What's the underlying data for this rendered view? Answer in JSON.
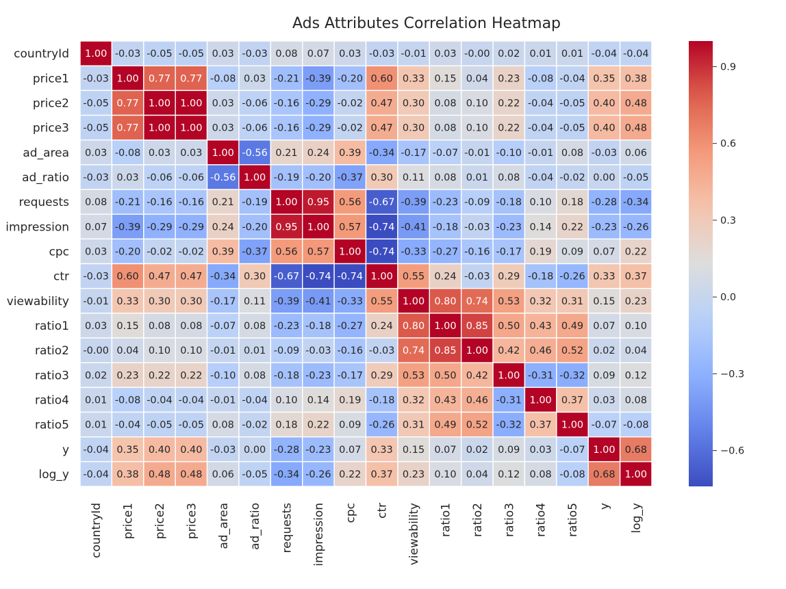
{
  "chart_data": {
    "type": "heatmap",
    "title": "Ads Attributes Correlation Heatmap",
    "labels": [
      "countryId",
      "price1",
      "price2",
      "price3",
      "ad_area",
      "ad_ratio",
      "requests",
      "impression",
      "cpc",
      "ctr",
      "viewability",
      "ratio1",
      "ratio2",
      "ratio3",
      "ratio4",
      "ratio5",
      "y",
      "log_y"
    ],
    "matrix": [
      [
        1.0,
        -0.03,
        -0.05,
        -0.05,
        0.03,
        -0.03,
        0.08,
        0.07,
        0.03,
        -0.03,
        -0.01,
        0.03,
        -0.0,
        0.02,
        0.01,
        0.01,
        -0.04,
        -0.04
      ],
      [
        -0.03,
        1.0,
        0.77,
        0.77,
        -0.08,
        0.03,
        -0.21,
        -0.39,
        -0.2,
        0.6,
        0.33,
        0.15,
        0.04,
        0.23,
        -0.08,
        -0.04,
        0.35,
        0.38
      ],
      [
        -0.05,
        0.77,
        1.0,
        1.0,
        0.03,
        -0.06,
        -0.16,
        -0.29,
        -0.02,
        0.47,
        0.3,
        0.08,
        0.1,
        0.22,
        -0.04,
        -0.05,
        0.4,
        0.48
      ],
      [
        -0.05,
        0.77,
        1.0,
        1.0,
        0.03,
        -0.06,
        -0.16,
        -0.29,
        -0.02,
        0.47,
        0.3,
        0.08,
        0.1,
        0.22,
        -0.04,
        -0.05,
        0.4,
        0.48
      ],
      [
        0.03,
        -0.08,
        0.03,
        0.03,
        1.0,
        -0.56,
        0.21,
        0.24,
        0.39,
        -0.34,
        -0.17,
        -0.07,
        -0.01,
        -0.1,
        -0.01,
        0.08,
        -0.03,
        0.06
      ],
      [
        -0.03,
        0.03,
        -0.06,
        -0.06,
        -0.56,
        1.0,
        -0.19,
        -0.2,
        -0.37,
        0.3,
        0.11,
        0.08,
        0.01,
        0.08,
        -0.04,
        -0.02,
        0.0,
        -0.05
      ],
      [
        0.08,
        -0.21,
        -0.16,
        -0.16,
        0.21,
        -0.19,
        1.0,
        0.95,
        0.56,
        -0.67,
        -0.39,
        -0.23,
        -0.09,
        -0.18,
        0.1,
        0.18,
        -0.28,
        -0.34
      ],
      [
        0.07,
        -0.39,
        -0.29,
        -0.29,
        0.24,
        -0.2,
        0.95,
        1.0,
        0.57,
        -0.74,
        -0.41,
        -0.18,
        -0.03,
        -0.23,
        0.14,
        0.22,
        -0.23,
        -0.26
      ],
      [
        0.03,
        -0.2,
        -0.02,
        -0.02,
        0.39,
        -0.37,
        0.56,
        0.57,
        1.0,
        -0.74,
        -0.33,
        -0.27,
        -0.16,
        -0.17,
        0.19,
        0.09,
        0.07,
        0.22
      ],
      [
        -0.03,
        0.6,
        0.47,
        0.47,
        -0.34,
        0.3,
        -0.67,
        -0.74,
        -0.74,
        1.0,
        0.55,
        0.24,
        -0.03,
        0.29,
        -0.18,
        -0.26,
        0.33,
        0.37
      ],
      [
        -0.01,
        0.33,
        0.3,
        0.3,
        -0.17,
        0.11,
        -0.39,
        -0.41,
        -0.33,
        0.55,
        1.0,
        0.8,
        0.74,
        0.53,
        0.32,
        0.31,
        0.15,
        0.23
      ],
      [
        0.03,
        0.15,
        0.08,
        0.08,
        -0.07,
        0.08,
        -0.23,
        -0.18,
        -0.27,
        0.24,
        0.8,
        1.0,
        0.85,
        0.5,
        0.43,
        0.49,
        0.07,
        0.1
      ],
      [
        -0.0,
        0.04,
        0.1,
        0.1,
        -0.01,
        0.01,
        -0.09,
        -0.03,
        -0.16,
        -0.03,
        0.74,
        0.85,
        1.0,
        0.42,
        0.46,
        0.52,
        0.02,
        0.04
      ],
      [
        0.02,
        0.23,
        0.22,
        0.22,
        -0.1,
        0.08,
        -0.18,
        -0.23,
        -0.17,
        0.29,
        0.53,
        0.5,
        0.42,
        1.0,
        -0.31,
        -0.32,
        0.09,
        0.12
      ],
      [
        0.01,
        -0.08,
        -0.04,
        -0.04,
        -0.01,
        -0.04,
        0.1,
        0.14,
        0.19,
        -0.18,
        0.32,
        0.43,
        0.46,
        -0.31,
        1.0,
        0.37,
        0.03,
        0.08
      ],
      [
        0.01,
        -0.04,
        -0.05,
        -0.05,
        0.08,
        -0.02,
        0.18,
        0.22,
        0.09,
        -0.26,
        0.31,
        0.49,
        0.52,
        -0.32,
        0.37,
        1.0,
        -0.07,
        -0.08
      ],
      [
        -0.04,
        0.35,
        0.4,
        0.4,
        -0.03,
        0.0,
        -0.28,
        -0.23,
        0.07,
        0.33,
        0.15,
        0.07,
        0.02,
        0.09,
        0.03,
        -0.07,
        1.0,
        0.68
      ],
      [
        -0.04,
        0.38,
        0.48,
        0.48,
        0.06,
        -0.05,
        -0.34,
        -0.26,
        0.22,
        0.37,
        0.23,
        0.1,
        0.04,
        0.12,
        0.08,
        -0.08,
        0.68,
        1.0
      ]
    ],
    "colormap": "coolwarm",
    "vmin": -0.74,
    "vmax": 1.0,
    "annotation_format": "0.00",
    "colorbar_ticks": [
      0.9,
      0.6,
      0.3,
      0.0,
      -0.3,
      -0.6
    ],
    "colorbar_tick_labels": [
      "0.9",
      "0.6",
      "0.3",
      "0.0",
      "−0.3",
      "−0.6"
    ],
    "grid_lines": "white",
    "legend": "colorbar-right"
  }
}
